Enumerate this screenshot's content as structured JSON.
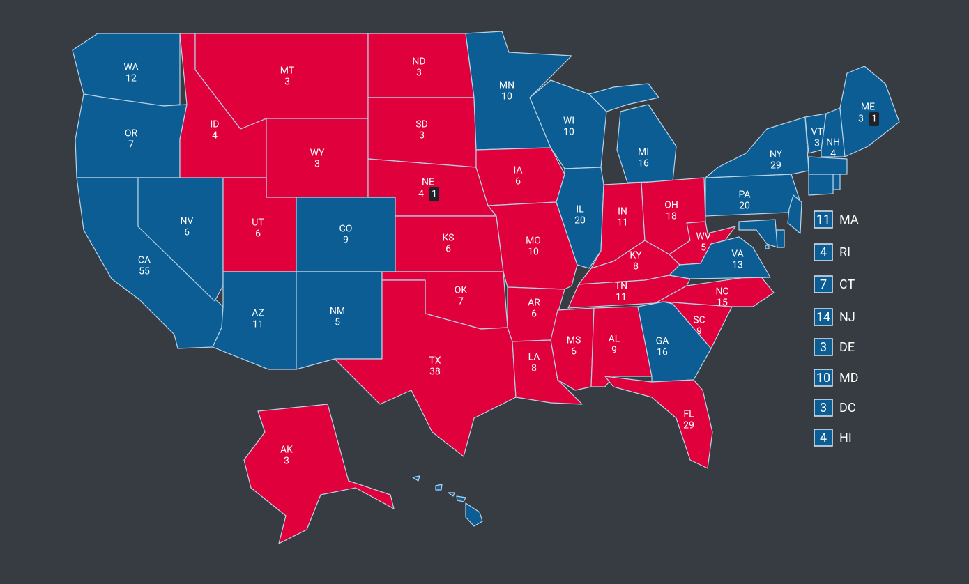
{
  "colors": {
    "D": "#0b5d93",
    "R": "#e0003b",
    "split": "#1f2327"
  },
  "states": [
    {
      "abbr": "WA",
      "votes": 12,
      "party": "D"
    },
    {
      "abbr": "OR",
      "votes": 7,
      "party": "D"
    },
    {
      "abbr": "CA",
      "votes": 55,
      "party": "D"
    },
    {
      "abbr": "NV",
      "votes": 6,
      "party": "D"
    },
    {
      "abbr": "ID",
      "votes": 4,
      "party": "R"
    },
    {
      "abbr": "MT",
      "votes": 3,
      "party": "R"
    },
    {
      "abbr": "WY",
      "votes": 3,
      "party": "R"
    },
    {
      "abbr": "UT",
      "votes": 6,
      "party": "R"
    },
    {
      "abbr": "CO",
      "votes": 9,
      "party": "D"
    },
    {
      "abbr": "AZ",
      "votes": 11,
      "party": "D"
    },
    {
      "abbr": "NM",
      "votes": 5,
      "party": "D"
    },
    {
      "abbr": "ND",
      "votes": 3,
      "party": "R"
    },
    {
      "abbr": "SD",
      "votes": 3,
      "party": "R"
    },
    {
      "abbr": "NE",
      "votes": 4,
      "party": "R",
      "district_votes": 1,
      "district_party": "split"
    },
    {
      "abbr": "KS",
      "votes": 6,
      "party": "R"
    },
    {
      "abbr": "OK",
      "votes": 7,
      "party": "R"
    },
    {
      "abbr": "TX",
      "votes": 38,
      "party": "R"
    },
    {
      "abbr": "MN",
      "votes": 10,
      "party": "D"
    },
    {
      "abbr": "IA",
      "votes": 6,
      "party": "R"
    },
    {
      "abbr": "MO",
      "votes": 10,
      "party": "R"
    },
    {
      "abbr": "AR",
      "votes": 6,
      "party": "R"
    },
    {
      "abbr": "LA",
      "votes": 8,
      "party": "R"
    },
    {
      "abbr": "WI",
      "votes": 10,
      "party": "D"
    },
    {
      "abbr": "IL",
      "votes": 20,
      "party": "D"
    },
    {
      "abbr": "MI",
      "votes": 16,
      "party": "D"
    },
    {
      "abbr": "IN",
      "votes": 11,
      "party": "R"
    },
    {
      "abbr": "OH",
      "votes": 18,
      "party": "R"
    },
    {
      "abbr": "KY",
      "votes": 8,
      "party": "R"
    },
    {
      "abbr": "TN",
      "votes": 11,
      "party": "R"
    },
    {
      "abbr": "MS",
      "votes": 6,
      "party": "R"
    },
    {
      "abbr": "AL",
      "votes": 9,
      "party": "R"
    },
    {
      "abbr": "GA",
      "votes": 16,
      "party": "D"
    },
    {
      "abbr": "FL",
      "votes": 29,
      "party": "R"
    },
    {
      "abbr": "SC",
      "votes": 9,
      "party": "R"
    },
    {
      "abbr": "NC",
      "votes": 15,
      "party": "R"
    },
    {
      "abbr": "WV",
      "votes": 5,
      "party": "R"
    },
    {
      "abbr": "VA",
      "votes": 13,
      "party": "D"
    },
    {
      "abbr": "PA",
      "votes": 20,
      "party": "D"
    },
    {
      "abbr": "NY",
      "votes": 29,
      "party": "D"
    },
    {
      "abbr": "VT",
      "votes": 3,
      "party": "D"
    },
    {
      "abbr": "NH",
      "votes": 4,
      "party": "D"
    },
    {
      "abbr": "ME",
      "votes": 3,
      "party": "D",
      "district_votes": 1,
      "district_party": "split"
    },
    {
      "abbr": "AK",
      "votes": 3,
      "party": "R"
    }
  ],
  "small_states": [
    {
      "abbr": "MA",
      "votes": 11,
      "party": "D"
    },
    {
      "abbr": "RI",
      "votes": 4,
      "party": "D"
    },
    {
      "abbr": "CT",
      "votes": 7,
      "party": "D"
    },
    {
      "abbr": "NJ",
      "votes": 14,
      "party": "D"
    },
    {
      "abbr": "DE",
      "votes": 3,
      "party": "D"
    },
    {
      "abbr": "MD",
      "votes": 10,
      "party": "D"
    },
    {
      "abbr": "DC",
      "votes": 3,
      "party": "D"
    },
    {
      "abbr": "HI",
      "votes": 4,
      "party": "D"
    }
  ]
}
